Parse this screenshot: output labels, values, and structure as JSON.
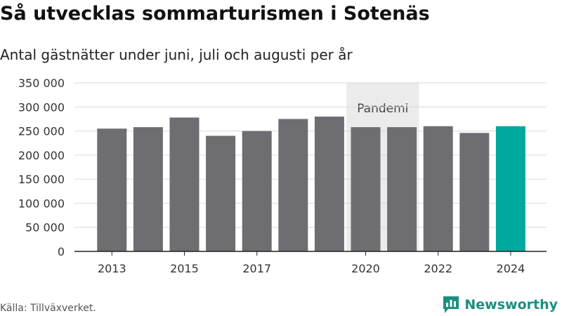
{
  "header": {
    "title": "Så utvecklas sommarturismen i Sotenäs",
    "subtitle": "Antal gästnätter under juni, juli och augusti per år"
  },
  "footer": {
    "source": "Källa: Tillväxverket.",
    "brand": "Newsworthy"
  },
  "chart_data": {
    "type": "bar",
    "title": "Så utvecklas sommarturismen i Sotenäs",
    "subtitle": "Antal gästnätter under juni, juli och augusti per år",
    "categories": [
      "2013",
      "2014",
      "2015",
      "2016",
      "2017",
      "2018",
      "2019",
      "2020",
      "2021",
      "2022",
      "2023",
      "2024"
    ],
    "x_tick_labels": [
      "2013",
      "2015",
      "2017",
      "2020",
      "2022",
      "2024"
    ],
    "values": [
      255000,
      258000,
      278000,
      240000,
      250000,
      275000,
      280000,
      258000,
      258000,
      260000,
      246000,
      260000
    ],
    "ylim": [
      0,
      350000
    ],
    "y_ticks": [
      0,
      50000,
      100000,
      150000,
      200000,
      250000,
      300000,
      350000
    ],
    "y_tick_labels": [
      "0",
      "50 000",
      "100 000",
      "150 000",
      "200 000",
      "250 000",
      "300 000",
      "350 000"
    ],
    "grid": true,
    "bar_color": "#6e6d72",
    "highlight_color": "#00a99d",
    "highlight_category": "2024",
    "annotations": [
      {
        "label": "Pandemi",
        "from": "2020",
        "to": "2021",
        "color": "#ebebeb"
      }
    ]
  },
  "colors": {
    "grid": "#d9d9d9",
    "axis": "#222222",
    "brand": "#1a8f7f"
  }
}
